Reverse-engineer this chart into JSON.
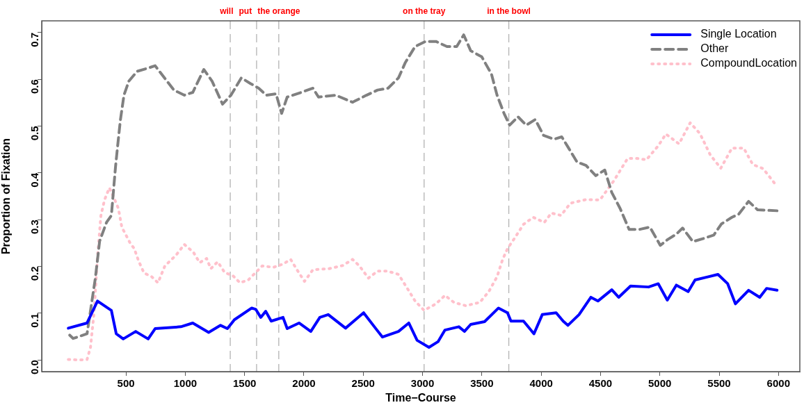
{
  "chart_data": {
    "type": "line",
    "xlabel": "Time−Course",
    "ylabel": "Proportion of Fixation",
    "xlim": [
      -210,
      6180
    ],
    "ylim": [
      -0.025,
      0.725
    ],
    "xticks": [
      500,
      1000,
      1500,
      2000,
      2500,
      3000,
      3500,
      4000,
      4500,
      5000,
      5500,
      6000
    ],
    "yticks": [
      {
        "value": 0,
        "label": "0.0"
      },
      0.1,
      0.2,
      0.3,
      0.4,
      0.5,
      0.6,
      0.7
    ],
    "grid": false,
    "legend": "top right",
    "marker": "none",
    "ref_lines": [
      {
        "axis": "x",
        "value": 1379,
        "label": "will",
        "color": "#b3b3b3",
        "line_style": "dashed"
      },
      {
        "axis": "x",
        "value": 1601,
        "label": "put",
        "color": "#b3b3b3",
        "line_style": "dashed"
      },
      {
        "axis": "x",
        "value": 1788,
        "label": "the orange",
        "color": "#b3b3b3",
        "line_style": "dashed"
      },
      {
        "axis": "x",
        "value": 3013,
        "label": "on the tray",
        "color": "#b3b3b3",
        "line_style": "dashed"
      },
      {
        "axis": "x",
        "value": 3727,
        "label": "in the bowl",
        "color": "#b3b3b3",
        "line_style": "dashed"
      }
    ],
    "series": [
      {
        "name": "Single Location",
        "color": "#0000ff",
        "line_style": "solid",
        "x": [
          14,
          172,
          260,
          377,
          418,
          477,
          582,
          687,
          746,
          963,
          1063,
          1197,
          1297,
          1355,
          1414,
          1560,
          1595,
          1636,
          1678,
          1724,
          1824,
          1859,
          1959,
          2058,
          2134,
          2205,
          2351,
          2503,
          2603,
          2662,
          2797,
          2884,
          2954,
          3054,
          3130,
          3189,
          3306,
          3353,
          3406,
          3523,
          3640,
          3716,
          3745,
          3851,
          3939,
          4009,
          4126,
          4185,
          4225,
          4319,
          4419,
          4478,
          4595,
          4653,
          4753,
          4905,
          4987,
          5063,
          5139,
          5239,
          5297,
          5490,
          5572,
          5637,
          5748,
          5842,
          5900,
          5988
        ],
        "values": [
          0.068,
          0.079,
          0.126,
          0.106,
          0.056,
          0.045,
          0.061,
          0.045,
          0.067,
          0.071,
          0.079,
          0.059,
          0.074,
          0.067,
          0.086,
          0.111,
          0.108,
          0.091,
          0.104,
          0.083,
          0.091,
          0.067,
          0.079,
          0.061,
          0.091,
          0.097,
          0.068,
          0.101,
          0.068,
          0.049,
          0.061,
          0.079,
          0.042,
          0.027,
          0.039,
          0.064,
          0.071,
          0.061,
          0.076,
          0.082,
          0.111,
          0.101,
          0.083,
          0.083,
          0.056,
          0.097,
          0.101,
          0.083,
          0.074,
          0.097,
          0.134,
          0.126,
          0.15,
          0.134,
          0.158,
          0.156,
          0.163,
          0.128,
          0.16,
          0.146,
          0.171,
          0.183,
          0.163,
          0.12,
          0.149,
          0.134,
          0.153,
          0.149
        ]
      },
      {
        "name": "Other",
        "color": "#808080",
        "line_style": "dashed",
        "x": [
          26,
          55,
          172,
          242,
          278,
          336,
          377,
          412,
          430,
          453,
          483,
          524,
          594,
          687,
          746,
          846,
          904,
          992,
          1063,
          1156,
          1226,
          1314,
          1385,
          1472,
          1549,
          1619,
          1683,
          1765,
          1812,
          1859,
          1976,
          2076,
          2123,
          2269,
          2410,
          2527,
          2621,
          2709,
          2797,
          2855,
          2937,
          3025,
          3113,
          3206,
          3288,
          3347,
          3406,
          3499,
          3581,
          3628,
          3687,
          3734,
          3804,
          3874,
          3950,
          4020,
          4108,
          4173,
          4231,
          4302,
          4378,
          4460,
          4536,
          4595,
          4665,
          4741,
          4828,
          4916,
          5004,
          5063,
          5139,
          5192,
          5279,
          5373,
          5455,
          5520,
          5608,
          5666,
          5748,
          5824,
          5988
        ],
        "values": [
          0.053,
          0.046,
          0.056,
          0.175,
          0.254,
          0.294,
          0.309,
          0.413,
          0.458,
          0.513,
          0.566,
          0.596,
          0.617,
          0.624,
          0.629,
          0.596,
          0.577,
          0.566,
          0.572,
          0.621,
          0.596,
          0.547,
          0.566,
          0.603,
          0.591,
          0.581,
          0.566,
          0.569,
          0.527,
          0.562,
          0.572,
          0.581,
          0.562,
          0.566,
          0.551,
          0.566,
          0.577,
          0.581,
          0.603,
          0.636,
          0.67,
          0.681,
          0.681,
          0.67,
          0.67,
          0.695,
          0.661,
          0.648,
          0.611,
          0.566,
          0.527,
          0.502,
          0.52,
          0.502,
          0.514,
          0.48,
          0.472,
          0.477,
          0.453,
          0.423,
          0.416,
          0.394,
          0.406,
          0.358,
          0.324,
          0.279,
          0.279,
          0.284,
          0.245,
          0.257,
          0.269,
          0.282,
          0.253,
          0.26,
          0.267,
          0.291,
          0.305,
          0.312,
          0.339,
          0.321,
          0.319
        ]
      },
      {
        "name": "CompoundLocation",
        "color": "#ffc0cb",
        "line_style": "dotted",
        "x": [
          14,
          114,
          172,
          201,
          231,
          260,
          289,
          319,
          360,
          395,
          436,
          465,
          535,
          570,
          606,
          652,
          717,
          770,
          828,
          922,
          992,
          1069,
          1121,
          1180,
          1215,
          1273,
          1332,
          1402,
          1461,
          1531,
          1578,
          1648,
          1742,
          1824,
          1888,
          1941,
          2005,
          2076,
          2210,
          2328,
          2410,
          2468,
          2544,
          2621,
          2703,
          2797,
          2879,
          2937,
          3013,
          3113,
          3189,
          3265,
          3365,
          3482,
          3558,
          3628,
          3675,
          3716,
          3775,
          3851,
          3933,
          4026,
          4085,
          4167,
          4243,
          4261,
          4378,
          4495,
          4612,
          4729,
          4800,
          4887,
          4987,
          5051,
          5162,
          5256,
          5338,
          5426,
          5514,
          5608,
          5707,
          5783,
          5871,
          5982
        ],
        "values": [
          0.001,
          0,
          0.001,
          0.027,
          0.101,
          0.22,
          0.309,
          0.342,
          0.368,
          0.349,
          0.324,
          0.284,
          0.25,
          0.238,
          0.212,
          0.186,
          0.178,
          0.165,
          0.201,
          0.224,
          0.247,
          0.23,
          0.208,
          0.217,
          0.195,
          0.21,
          0.187,
          0.18,
          0.165,
          0.171,
          0.183,
          0.201,
          0.198,
          0.205,
          0.215,
          0.193,
          0.168,
          0.193,
          0.195,
          0.202,
          0.215,
          0.201,
          0.175,
          0.19,
          0.19,
          0.183,
          0.15,
          0.126,
          0.106,
          0.12,
          0.138,
          0.123,
          0.116,
          0.123,
          0.146,
          0.178,
          0.215,
          0.238,
          0.26,
          0.29,
          0.305,
          0.294,
          0.314,
          0.309,
          0.334,
          0.336,
          0.343,
          0.342,
          0.383,
          0.431,
          0.431,
          0.428,
          0.458,
          0.483,
          0.462,
          0.507,
          0.484,
          0.438,
          0.41,
          0.453,
          0.453,
          0.418,
          0.409,
          0.373
        ]
      }
    ]
  }
}
